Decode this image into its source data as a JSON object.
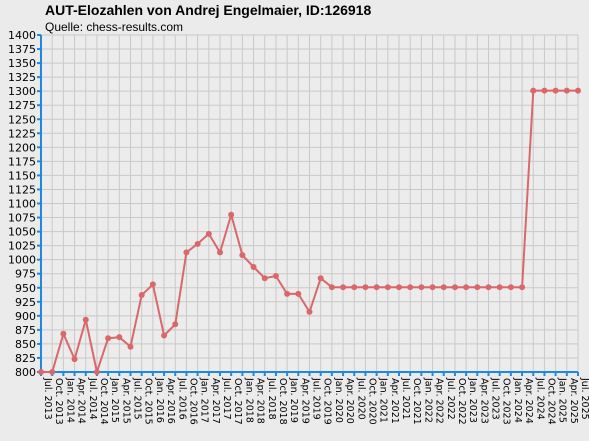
{
  "chart_data": {
    "type": "line",
    "title": "AUT-Elozahlen von Andrej Engelmaier, ID:126918",
    "subtitle": "Quelle: chess-results.com",
    "xlabel": "",
    "ylabel": "",
    "ylim": [
      800,
      1400
    ],
    "y_step": 25,
    "grid": true,
    "line_color": "#d9686a",
    "axis_color": "#1e88e5",
    "categories": [
      "Jul. 2013",
      "Oct. 2013",
      "Jan. 2014",
      "Apr. 2014",
      "Jul. 2014",
      "Oct. 2014",
      "Jan. 2015",
      "Apr. 2015",
      "Jul. 2015",
      "Oct. 2015",
      "Jan. 2016",
      "Apr. 2016",
      "Jul. 2016",
      "Oct. 2016",
      "Jan. 2017",
      "Apr. 2017",
      "Jul. 2017",
      "Oct. 2017",
      "Jan. 2018",
      "Apr. 2018",
      "Jul. 2018",
      "Oct. 2018",
      "Jan. 2019",
      "Apr. 2019",
      "Jul. 2019",
      "Oct. 2019",
      "Jan. 2020",
      "Apr. 2020",
      "Jul. 2020",
      "Oct. 2020",
      "Jan. 2021",
      "Apr. 2021",
      "Jul. 2021",
      "Oct. 2021",
      "Jan. 2022",
      "Apr. 2022",
      "Jul. 2022",
      "Oct. 2022",
      "Jan. 2023",
      "Apr. 2023",
      "Jul. 2023",
      "Oct. 2023",
      "Jan. 2024",
      "Apr. 2024",
      "Jul. 2024",
      "Oct. 2024",
      "Jan. 2025",
      "Apr. 2025",
      "Jul. 2025"
    ],
    "values": [
      800,
      800,
      868,
      823,
      893,
      800,
      860,
      862,
      845,
      937,
      956,
      865,
      885,
      1013,
      1028,
      1046,
      1013,
      1080,
      1008,
      987,
      967,
      971,
      939,
      939,
      907,
      967,
      951,
      951,
      951,
      951,
      951,
      951,
      951,
      951,
      951,
      951,
      951,
      951,
      951,
      951,
      951,
      951,
      951,
      951,
      1301,
      1301,
      1301,
      1301,
      1301
    ]
  }
}
